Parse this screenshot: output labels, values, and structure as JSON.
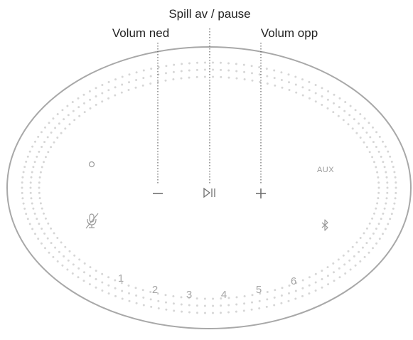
{
  "callouts": {
    "play_pause": "Spill av / pause",
    "volume_down": "Volum ned",
    "volume_up": "Volum opp"
  },
  "buttons": {
    "volume_down_symbol": "–",
    "play_pause_symbol": "▷II",
    "volume_up_symbol": "+",
    "aux_label": "AUX"
  },
  "icons": {
    "action": "action-icon",
    "mic_off": "mic-off-icon",
    "bluetooth": "bluetooth-icon"
  },
  "presets": [
    "1",
    "2",
    "3",
    "4",
    "5",
    "6"
  ],
  "colors": {
    "outline": "#a8a8a8",
    "dots": "#d6d6d6",
    "callout_text": "#222222",
    "control_glyph": "#9a9a9a"
  }
}
